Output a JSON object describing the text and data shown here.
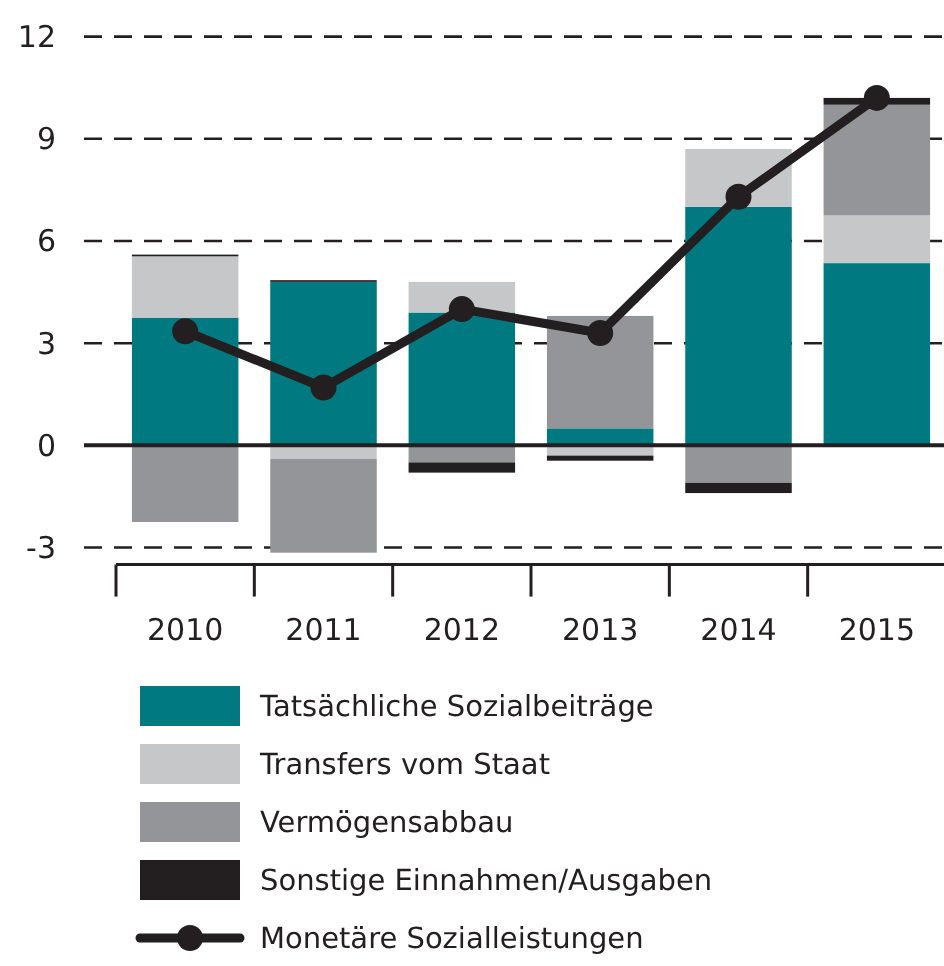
{
  "chart_data": {
    "type": "bar",
    "stacked": true,
    "categories": [
      "2010",
      "2011",
      "2012",
      "2013",
      "2014",
      "2015"
    ],
    "series": [
      {
        "name": "Tatsächliche Sozialbeiträge",
        "color": "#007a80",
        "values": [
          3.75,
          4.8,
          3.9,
          0.5,
          7.0,
          5.35
        ]
      },
      {
        "name": "Transfers vom Staat",
        "color": "#c6c7c9",
        "values": [
          1.8,
          -0.4,
          0.9,
          -0.3,
          1.7,
          1.4
        ]
      },
      {
        "name": "Vermögensabbau",
        "color": "#939598",
        "values": [
          -2.25,
          -2.75,
          -0.5,
          3.3,
          -1.1,
          3.25
        ]
      },
      {
        "name": "Sonstige Einnahmen/Ausgaben",
        "color": "#231f20",
        "values": [
          0.05,
          0.05,
          -0.3,
          -0.15,
          -0.3,
          0.2
        ]
      },
      {
        "name": "Monetäre Sozialleistungen",
        "type": "line",
        "color": "#231f20",
        "marker": "circle",
        "values": [
          3.35,
          1.7,
          4.0,
          3.3,
          7.3,
          10.2
        ]
      }
    ],
    "ylim": [
      -3.5,
      12
    ],
    "yticks": [
      -3,
      0,
      3,
      6,
      9,
      12
    ],
    "grid": "y",
    "legend": "bottom"
  }
}
